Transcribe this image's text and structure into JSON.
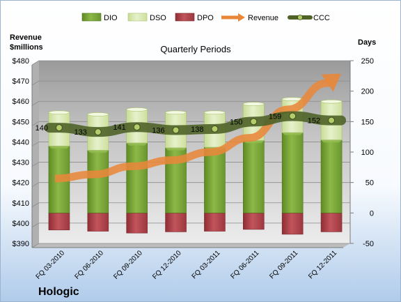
{
  "chart_data": {
    "type": "bar",
    "title": "Quarterly Periods",
    "company": "Hologic",
    "left_axis_title": [
      "Revenue",
      "$millions"
    ],
    "right_axis_title": "Days",
    "left_ticks": [
      "$480",
      "$470",
      "$460",
      "$450",
      "$440",
      "$430",
      "$420",
      "$410",
      "$400",
      "$390"
    ],
    "right_ticks": [
      "250",
      "200",
      "150",
      "100",
      "50",
      "0",
      "-50"
    ],
    "left_range": [
      390,
      480
    ],
    "right_range": [
      -50,
      250
    ],
    "categories": [
      "FQ 03-2010",
      "FQ 06-2010",
      "FQ 09-2010",
      "FQ 12-2010",
      "FQ 03-2011",
      "FQ 06-2011",
      "FQ 09-2011",
      "FQ 12-2011"
    ],
    "series": [
      {
        "name": "DIO",
        "axis": "right",
        "values": [
          110,
          103,
          115,
          107,
          108,
          119,
          132,
          120
        ]
      },
      {
        "name": "DSO",
        "axis": "right",
        "values": [
          56,
          60,
          56,
          59,
          58,
          61,
          56,
          64
        ]
      },
      {
        "name": "DPO",
        "axis": "right",
        "values": [
          -28,
          -30,
          -33,
          -31,
          -30,
          -27,
          -35,
          -31
        ]
      },
      {
        "name": "Revenue",
        "axis": "left",
        "values": [
          422,
          424,
          428,
          431,
          435,
          442,
          456,
          469
        ]
      },
      {
        "name": "CCC",
        "axis": "right",
        "values": [
          140,
          133,
          141,
          136,
          138,
          150,
          159,
          152
        ]
      }
    ],
    "ccc_labels": [
      "140",
      "133",
      "141",
      "136",
      "138",
      "150",
      "159",
      "152"
    ],
    "colors": {
      "DIO": "#7FA83A",
      "DSO": "#D4E6A8",
      "DPO": "#B84850",
      "Revenue": "#E8873A",
      "CCC": "#4F6328",
      "plot_bg_top": "#9A9A9A",
      "plot_bg_bottom": "#E8E8E8",
      "page_bg_top": "#FFFFFF",
      "page_bg_bottom": "#AFCBEA"
    },
    "grid": true,
    "legend_position": "top"
  }
}
